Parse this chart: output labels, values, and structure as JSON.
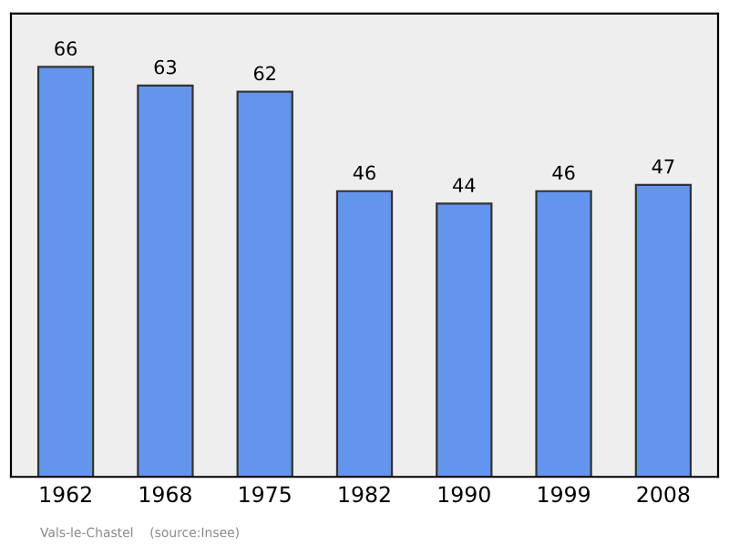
{
  "chart_data": {
    "type": "bar",
    "categories": [
      "1962",
      "1968",
      "1975",
      "1982",
      "1990",
      "1999",
      "2008"
    ],
    "values": [
      66,
      63,
      62,
      46,
      44,
      46,
      47
    ],
    "color": "#6495ed",
    "data_labels": true,
    "grid": false,
    "legend": false,
    "annotations": [
      "Vals-le-Chastel    (source:Insee)"
    ]
  }
}
